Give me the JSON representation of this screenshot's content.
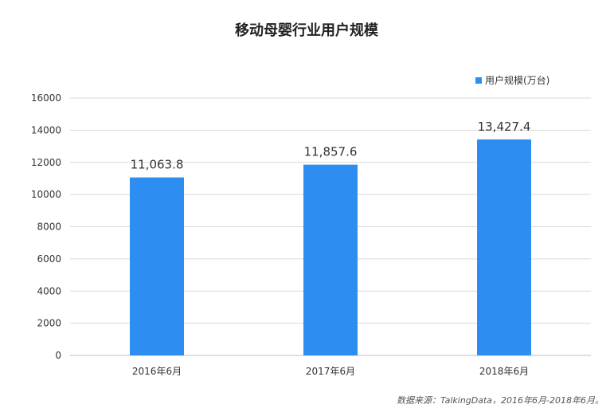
{
  "chart_data": {
    "type": "bar",
    "title": "移动母婴行业用户规模",
    "categories": [
      "2016年6月",
      "2017年6月",
      "2018年6月"
    ],
    "series": [
      {
        "name": "用户规模(万台)",
        "values": [
          11063.8,
          11857.6,
          13427.4
        ],
        "data_labels": [
          "11,063.8",
          "11,857.6",
          "13,427.4"
        ],
        "color": "#2e8df0"
      }
    ],
    "ylim": [
      0,
      16000
    ],
    "yticks": [
      "0",
      "2000",
      "4000",
      "6000",
      "8000",
      "10000",
      "12000",
      "14000",
      "16000"
    ],
    "grid": true,
    "legend_position": "top-right",
    "source_note": "数据来源：TalkingData，2016年6月-2018年6月。"
  }
}
